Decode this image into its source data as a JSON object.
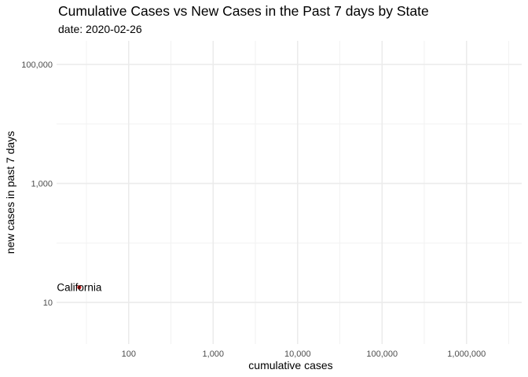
{
  "chart_data": {
    "type": "scatter",
    "title": "Cumulative Cases vs New Cases in the Past 7 days by State",
    "subtitle": "date: 2020-02-26",
    "xlabel": "cumulative cases",
    "ylabel": "new cases in past 7 days",
    "x_scale": "log10",
    "y_scale": "log10",
    "xlim": [
      14,
      4500000
    ],
    "ylim": [
      2,
      250000
    ],
    "x_ticks": [
      100,
      1000,
      10000,
      100000,
      1000000
    ],
    "x_tick_labels": [
      "100",
      "1,000",
      "10,000",
      "100,000",
      "1,000,000"
    ],
    "y_ticks": [
      10,
      1000,
      100000
    ],
    "y_tick_labels": [
      "10",
      "1,000",
      "100,000"
    ],
    "grid": true,
    "points": [
      {
        "label": "California",
        "x": 26,
        "y": 18,
        "color": "#cc1f1f"
      }
    ]
  }
}
